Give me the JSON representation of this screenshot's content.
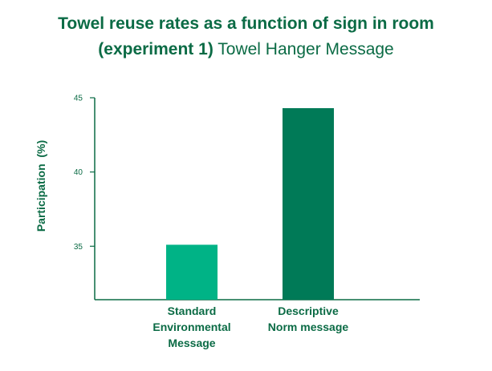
{
  "title": {
    "line1": "Towel reuse rates as a function of sign in room",
    "line2_bold": "(experiment 1)",
    "line2_rest": "Towel Hanger Message"
  },
  "colors": {
    "text": "#0b6b45",
    "axis": "#0b6b45",
    "bar_1": "#00b386",
    "bar_2": "#007a57"
  },
  "chart_data": {
    "type": "bar",
    "title": "Towel reuse rates as a function of sign in room (experiment 1) Towel Hanger Message",
    "xlabel": "",
    "ylabel": "Participation  (%)",
    "categories": [
      [
        "Standard",
        "Environmental",
        "Message"
      ],
      [
        "Descriptive",
        "Norm message"
      ]
    ],
    "values": [
      35.1,
      44.3
    ],
    "yticks": [
      35,
      40,
      45
    ],
    "ylim": [
      31.4,
      45
    ],
    "grid": false,
    "legend": "none"
  }
}
